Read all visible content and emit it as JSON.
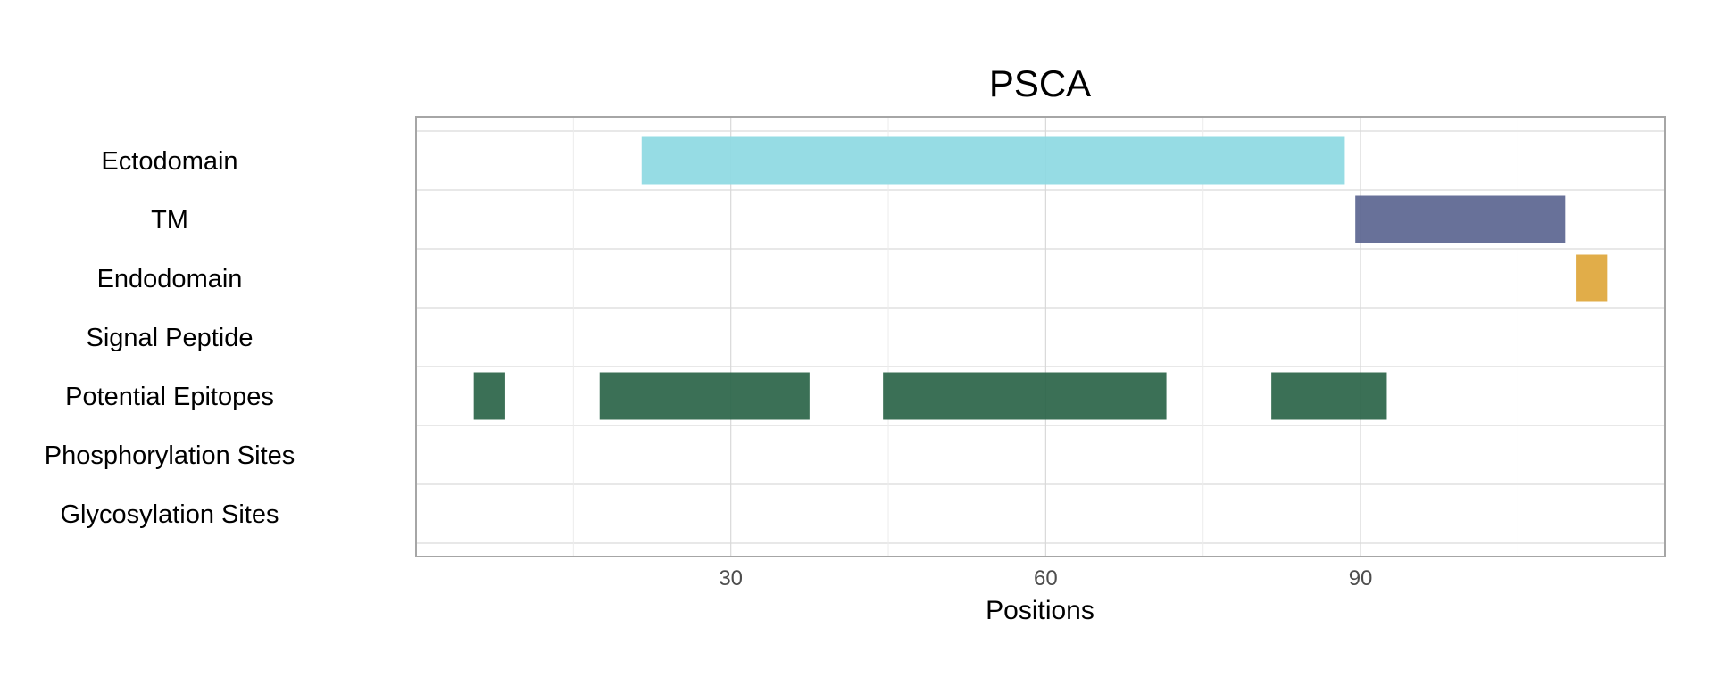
{
  "chart_data": {
    "type": "bar",
    "orientation": "horizontal-ranges",
    "title": "PSCA",
    "xlabel": "Positions",
    "ylabel": "",
    "xlim": [
      0,
      119
    ],
    "x_ticks": [
      30,
      60,
      90
    ],
    "grid": true,
    "rows": [
      {
        "label": "Ectodomain",
        "color": "#8dd9e2",
        "ranges": [
          [
            21.5,
            88.5
          ]
        ]
      },
      {
        "label": "TM",
        "color": "#5b6590",
        "ranges": [
          [
            89.5,
            109.5
          ]
        ]
      },
      {
        "label": "Endodomain",
        "color": "#dea63a",
        "ranges": [
          [
            110.5,
            113.5
          ]
        ]
      },
      {
        "label": "Signal Peptide",
        "color": "#2a6448",
        "ranges": []
      },
      {
        "label": "Potential Epitopes",
        "color": "#2a6448",
        "ranges": [
          [
            5.5,
            8.5
          ],
          [
            17.5,
            37.5
          ],
          [
            44.5,
            71.5
          ],
          [
            81.5,
            92.5
          ]
        ]
      },
      {
        "label": "Phosphorylation Sites",
        "color": "#2a6448",
        "ranges": []
      },
      {
        "label": "Glycosylation Sites",
        "color": "#2a6448",
        "ranges": []
      }
    ],
    "colors": {
      "panel_border": "#a6a6a6",
      "grid_major": "#d9d9d9",
      "grid_minor": "#ececec"
    }
  }
}
